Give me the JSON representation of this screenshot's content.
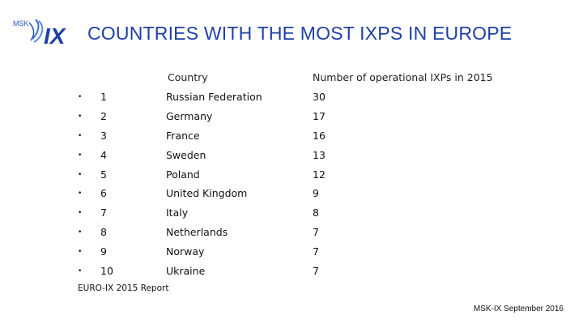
{
  "logo": {
    "small_text": "MSK",
    "big_text": "IX"
  },
  "title": "COUNTRIES WITH THE MOST IXPS IN EUROPE",
  "table": {
    "headers": {
      "country": "Country",
      "number": "Number of operational IXPs in 2015"
    },
    "rows": [
      {
        "bullet": "•",
        "rank": "1",
        "country": "Russian Federation",
        "count": "30"
      },
      {
        "bullet": "•",
        "rank": "2",
        "country": "Germany",
        "count": "17"
      },
      {
        "bullet": "•",
        "rank": "3",
        "country": "France",
        "count": "16"
      },
      {
        "bullet": "•",
        "rank": "4",
        "country": "Sweden",
        "count": "13"
      },
      {
        "bullet": "•",
        "rank": "5",
        "country": "Poland",
        "count": "12"
      },
      {
        "bullet": "•",
        "rank": "6",
        "country": "United Kingdom",
        "count": "9"
      },
      {
        "bullet": "•",
        "rank": "7",
        "country": "Italy",
        "count": "8"
      },
      {
        "bullet": "•",
        "rank": "8",
        "country": "Netherlands",
        "count": "7"
      },
      {
        "bullet": "•",
        "rank": "9",
        "country": "Norway",
        "count": "7"
      },
      {
        "bullet": "•",
        "rank": "10",
        "country": "Ukraine",
        "count": "7"
      }
    ]
  },
  "source": "EURO-IX 2015 Report",
  "footer": "MSK-IX September 2016"
}
